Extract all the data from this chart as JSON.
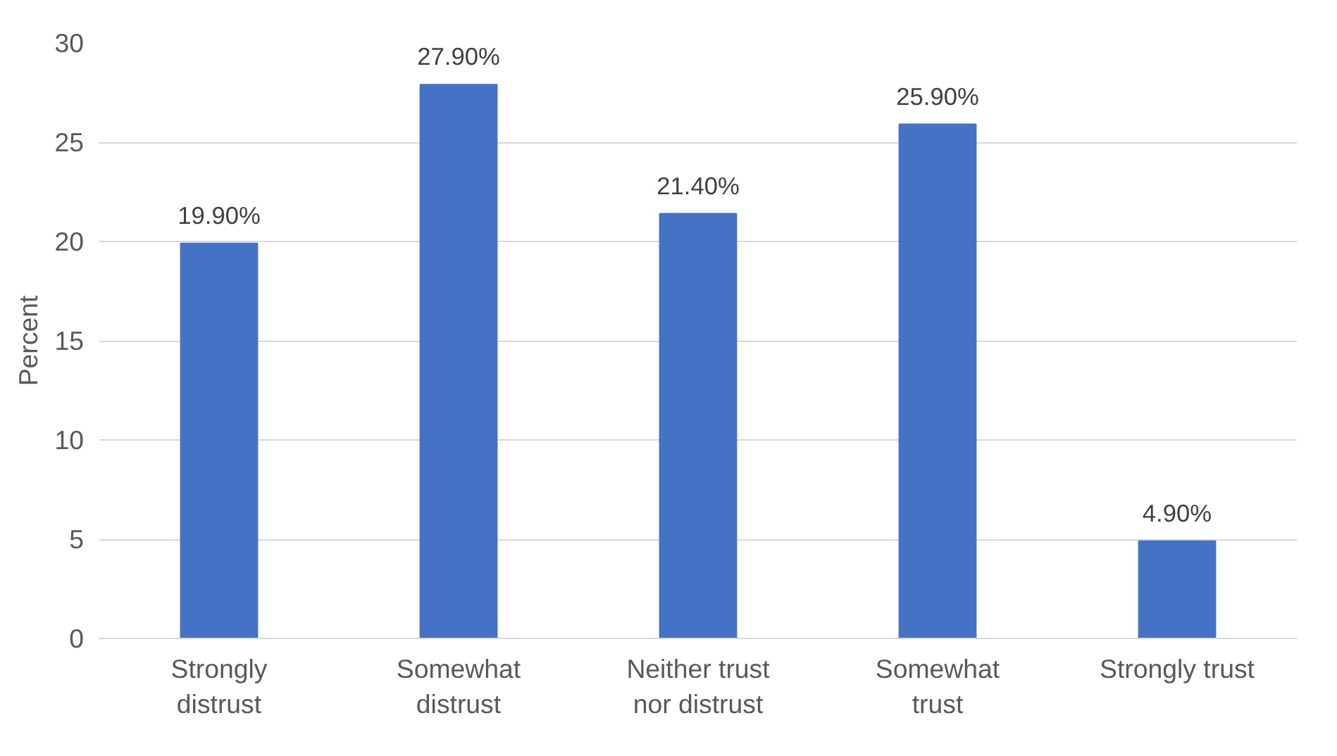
{
  "chart_data": {
    "type": "bar",
    "ylabel": "Percent",
    "categories": [
      "Strongly\ndistrust",
      "Somewhat\ndistrust",
      "Neither trust\nnor distrust",
      "Somewhat\ntrust",
      "Strongly trust"
    ],
    "values": [
      19.9,
      27.9,
      21.4,
      25.9,
      4.9
    ],
    "value_labels": [
      "19.90%",
      "27.90%",
      "21.40%",
      "25.90%",
      "4.90%"
    ],
    "color": "#4472c4",
    "ylim": [
      0,
      30
    ],
    "yticks": [
      0,
      5,
      10,
      15,
      20,
      25,
      30
    ],
    "grid": "y"
  }
}
